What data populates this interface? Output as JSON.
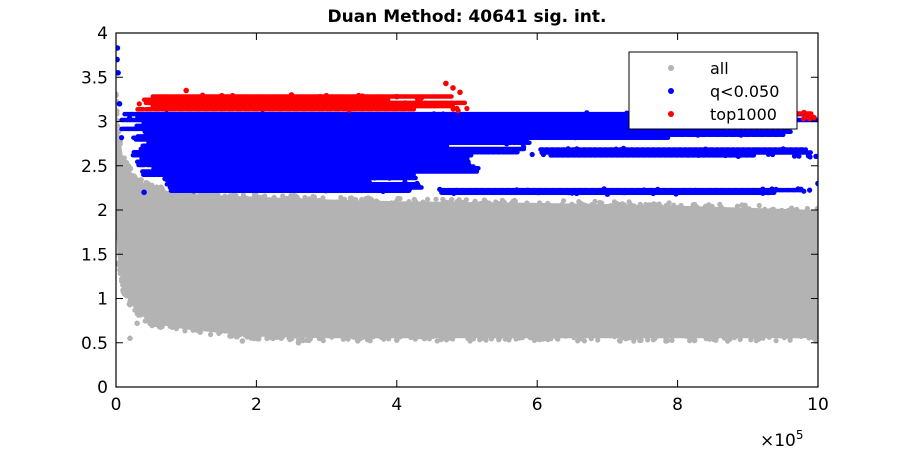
{
  "chart_data": {
    "type": "scatter",
    "title": "Duan Method: 40641 sig. int.",
    "xlabel": "",
    "ylabel": "",
    "xlim": [
      0,
      1000000
    ],
    "ylim": [
      0,
      4
    ],
    "x_tick_values": [
      0,
      200000,
      400000,
      600000,
      800000,
      1000000
    ],
    "x_tick_labels": [
      "0",
      "2",
      "4",
      "6",
      "8",
      "10"
    ],
    "x_exponent_label": "×10",
    "x_exponent_power": "5",
    "y_tick_values": [
      0,
      0.5,
      1,
      1.5,
      2,
      2.5,
      3,
      3.5,
      4
    ],
    "y_tick_labels": [
      "0",
      "0.5",
      "1",
      "1.5",
      "2",
      "2.5",
      "3",
      "3.5",
      "4"
    ],
    "grid": false,
    "legend_position": "top-right",
    "series": [
      {
        "name": "all",
        "color": "#b3b3b3",
        "envelope": {
          "x": [
            0,
            2000,
            5000,
            10000,
            20000,
            30000,
            50000,
            100000,
            200000,
            300000,
            400000,
            600000,
            800000,
            1000000
          ],
          "ymin": [
            1.9,
            1.5,
            1.3,
            1.1,
            0.95,
            0.85,
            0.72,
            0.65,
            0.57,
            0.55,
            0.55,
            0.55,
            0.55,
            0.55
          ],
          "ymax": [
            3.35,
            3.0,
            2.85,
            2.6,
            2.45,
            2.35,
            2.25,
            2.18,
            2.15,
            2.12,
            2.1,
            2.08,
            2.05,
            2.0
          ]
        },
        "sample_points": [
          {
            "x": 20000,
            "y": 0.55
          },
          {
            "x": 30000,
            "y": 0.72
          },
          {
            "x": 180000,
            "y": 0.52
          },
          {
            "x": 260000,
            "y": 0.5
          },
          {
            "x": 400000,
            "y": 0.53
          }
        ]
      },
      {
        "name": "q<0.050",
        "color": "#0000ff",
        "sample_points": [
          {
            "x": 2000,
            "y": 3.83
          },
          {
            "x": 1500,
            "y": 3.7
          },
          {
            "x": 3000,
            "y": 3.55
          },
          {
            "x": 5000,
            "y": 3.2
          },
          {
            "x": 40000,
            "y": 2.2
          },
          {
            "x": 500000,
            "y": 2.55
          },
          {
            "x": 700000,
            "y": 2.18
          },
          {
            "x": 1000000,
            "y": 2.3
          }
        ],
        "bands": [
          {
            "x0": 5000,
            "x1": 1000000,
            "y0": 2.8,
            "y1": 3.1
          },
          {
            "x0": 20000,
            "x1": 600000,
            "y0": 2.6,
            "y1": 2.85
          },
          {
            "x0": 30000,
            "x1": 520000,
            "y0": 2.38,
            "y1": 2.6
          },
          {
            "x0": 60000,
            "x1": 440000,
            "y0": 2.2,
            "y1": 2.38
          },
          {
            "x0": 440000,
            "x1": 1000000,
            "y0": 2.18,
            "y1": 2.24
          },
          {
            "x0": 600000,
            "x1": 1000000,
            "y0": 2.6,
            "y1": 2.7
          }
        ]
      },
      {
        "name": "top1000",
        "color": "#ff0000",
        "sample_points": [
          {
            "x": 100000,
            "y": 3.35
          },
          {
            "x": 250000,
            "y": 3.3
          },
          {
            "x": 400000,
            "y": 3.28
          },
          {
            "x": 470000,
            "y": 3.43
          },
          {
            "x": 480000,
            "y": 3.38
          },
          {
            "x": 490000,
            "y": 3.33
          },
          {
            "x": 980000,
            "y": 3.1
          }
        ],
        "bands": [
          {
            "x0": 30000,
            "x1": 500000,
            "y0": 3.12,
            "y1": 3.3
          },
          {
            "x0": 730000,
            "x1": 1000000,
            "y0": 3.03,
            "y1": 3.11
          }
        ]
      }
    ]
  }
}
